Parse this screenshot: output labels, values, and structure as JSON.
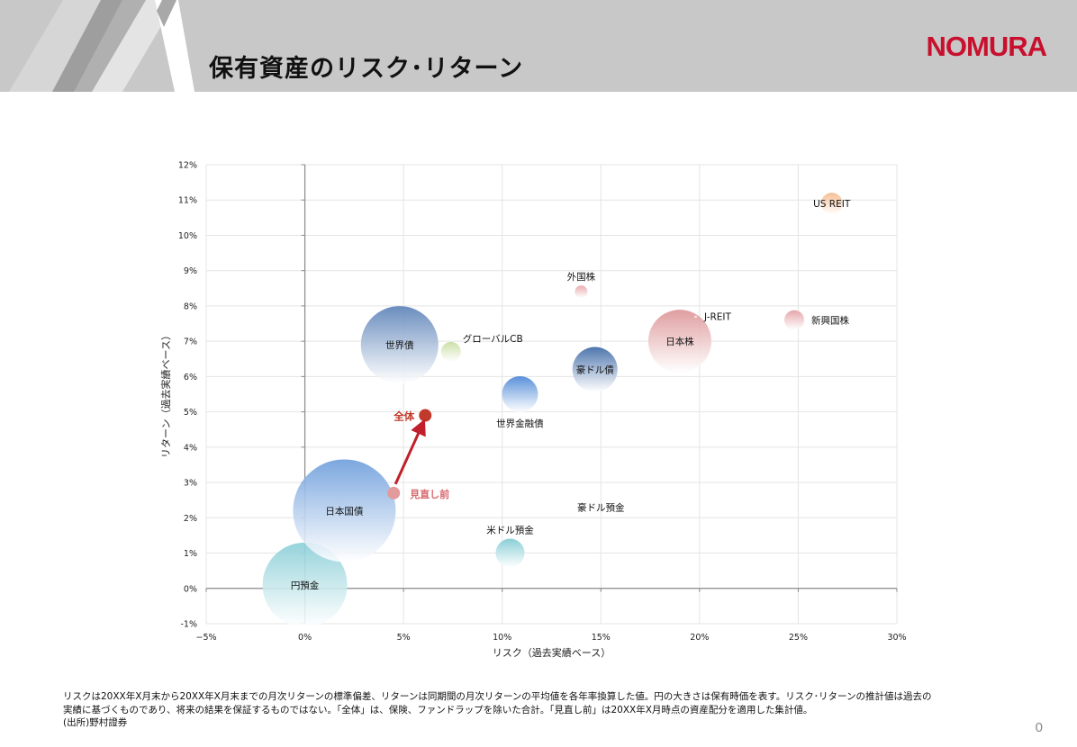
{
  "slide": {
    "title": "保有資産のリスク･リターン",
    "logo_text": "NOMURA",
    "page_number": "0",
    "footnote_lines": [
      "リスクは20XX年X月末から20XX年X月末までの月次リターンの標準偏差、リターンは同期間の月次リターンの平均値を各年率換算した値。円の大きさは保有時価を表す。リスク･リターンの推計値は過去の",
      "実績に基づくものであり、将来の結果を保証するものではない。「全体」は、保険、ファンドラップを除いた合計。「見直し前」は20XX年X月時点の資産配分を適用した集計値。",
      "(出所)野村證券"
    ]
  },
  "colors": {
    "brand_red": "#c8102e",
    "header_gray": "#c8c8c8",
    "total_red": "#c0392b",
    "arrow_red": "#c0202a"
  },
  "chart_data": {
    "type": "bubble",
    "xlabel": "リスク（過去実績ベース）",
    "ylabel": "リターン（過去実績ベース）",
    "xlim": [
      -5,
      30
    ],
    "ylim": [
      -1,
      12
    ],
    "x_ticks": [
      -5,
      0,
      5,
      10,
      15,
      20,
      25,
      30
    ],
    "y_ticks": [
      -1,
      0,
      1,
      2,
      3,
      4,
      5,
      6,
      7,
      8,
      9,
      10,
      11,
      12
    ],
    "x_tick_labels": [
      "−5%",
      "0%",
      "5%",
      "10%",
      "15%",
      "20%",
      "25%",
      "30%"
    ],
    "y_tick_labels": [
      "-1%",
      "0%",
      "1%",
      "2%",
      "3%",
      "4%",
      "5%",
      "6%",
      "7%",
      "8%",
      "9%",
      "10%",
      "11%",
      "12%"
    ],
    "grid": true,
    "points": [
      {
        "label": "円預金",
        "x": 0.0,
        "y": 0.1,
        "size": 47,
        "color": "#8ccfd8",
        "label_pos": "center"
      },
      {
        "label": "日本国債",
        "x": 2.0,
        "y": 2.2,
        "size": 57,
        "color": "#6f9fdc",
        "label_pos": "center"
      },
      {
        "label": "世界債",
        "x": 4.8,
        "y": 6.9,
        "size": 43,
        "color": "#5d83b8",
        "label_pos": "center"
      },
      {
        "label": "グローバルCB",
        "x": 7.4,
        "y": 6.7,
        "size": 11,
        "color": "#c8dca0",
        "label_pos": "right-top"
      },
      {
        "label": "世界金融債",
        "x": 10.9,
        "y": 5.5,
        "size": 20,
        "color": "#4a86d6",
        "label_pos": "below"
      },
      {
        "label": "米ドル預金",
        "x": 10.4,
        "y": 1.0,
        "size": 16,
        "color": "#7fcad3",
        "label_pos": "above"
      },
      {
        "label": "外国株",
        "x": 14.0,
        "y": 8.4,
        "size": 7,
        "color": "#e6a5a8",
        "label_pos": "above"
      },
      {
        "label": "豪ドル債",
        "x": 14.7,
        "y": 6.2,
        "size": 25,
        "color": "#3e6aa6",
        "label_pos": "center"
      },
      {
        "label": "豪ドル預金",
        "x": 15.0,
        "y": 2.3,
        "size": 0,
        "color": "#ffffff",
        "label_pos": "center"
      },
      {
        "label": "日本株",
        "x": 19.0,
        "y": 7.0,
        "size": 35,
        "color": "#dd9597",
        "label_pos": "center"
      },
      {
        "label": "J-REIT",
        "x": 19.8,
        "y": 7.7,
        "size": 1.5,
        "color": "#f2c6c8",
        "label_pos": "right"
      },
      {
        "label": "新興国株",
        "x": 24.8,
        "y": 7.6,
        "size": 11,
        "color": "#e39ea2",
        "label_pos": "right"
      },
      {
        "label": "US REIT",
        "x": 26.7,
        "y": 10.9,
        "size": 12,
        "color": "#f5b98a",
        "label_pos": "center"
      }
    ],
    "total": {
      "label": "全体",
      "x": 6.1,
      "y": 4.9
    },
    "before_review": {
      "label": "見直し前",
      "x": 4.5,
      "y": 2.7
    }
  }
}
